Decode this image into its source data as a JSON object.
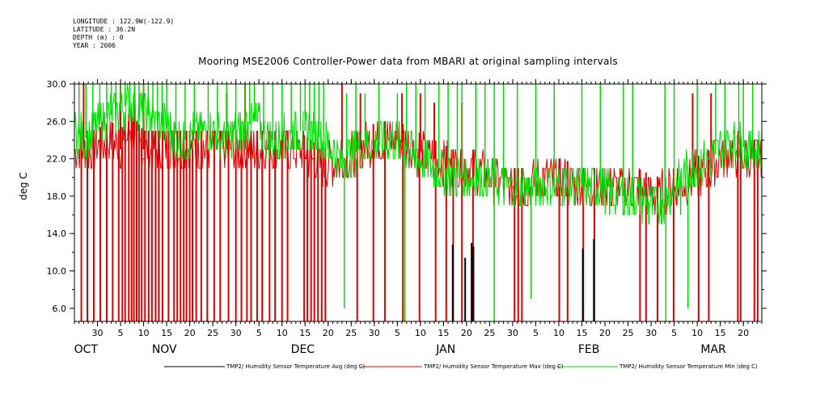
{
  "header": {
    "longitude": "LONGITUDE : 122.9W(-122.9)",
    "latitude": "LATITUDE : 36.2N",
    "depth": "DEPTH (m) : 0",
    "year": "YEAR : 2006"
  },
  "chart_data": {
    "type": "line",
    "title": "Mooring MSE2006 Controller-Power data from MBARI at original sampling intervals",
    "ylabel": "deg C",
    "xlabel": "",
    "ylim": [
      4.6,
      30.0
    ],
    "y_ticks": [
      "30.0",
      "26.0",
      "22.0",
      "18.0",
      "14.0",
      "10.0",
      "6.0"
    ],
    "y_tick_values": [
      30,
      26,
      22,
      18,
      14,
      10,
      6
    ],
    "x_day_range": [
      0,
      149
    ],
    "x_day_ticks": [
      {
        "day": 5,
        "label": "30"
      },
      {
        "day": 10,
        "label": "5"
      },
      {
        "day": 15,
        "label": "10"
      },
      {
        "day": 20,
        "label": "15"
      },
      {
        "day": 25,
        "label": "20"
      },
      {
        "day": 30,
        "label": "25"
      },
      {
        "day": 35,
        "label": "30"
      },
      {
        "day": 40,
        "label": "5"
      },
      {
        "day": 45,
        "label": "10"
      },
      {
        "day": 50,
        "label": "15"
      },
      {
        "day": 55,
        "label": "20"
      },
      {
        "day": 60,
        "label": "25"
      },
      {
        "day": 65,
        "label": "30"
      },
      {
        "day": 70,
        "label": "5"
      },
      {
        "day": 75,
        "label": "10"
      },
      {
        "day": 80,
        "label": "15"
      },
      {
        "day": 85,
        "label": "20"
      },
      {
        "day": 90,
        "label": "25"
      },
      {
        "day": 95,
        "label": "30"
      },
      {
        "day": 100,
        "label": "5"
      },
      {
        "day": 105,
        "label": "10"
      },
      {
        "day": 110,
        "label": "15"
      },
      {
        "day": 115,
        "label": "20"
      },
      {
        "day": 120,
        "label": "25"
      },
      {
        "day": 125,
        "label": "30"
      },
      {
        "day": 130,
        "label": "5"
      },
      {
        "day": 135,
        "label": "10"
      },
      {
        "day": 140,
        "label": "15"
      },
      {
        "day": 145,
        "label": "20"
      }
    ],
    "x_months": [
      {
        "day": 2.5,
        "label": "OCT"
      },
      {
        "day": 19.5,
        "label": "NOV"
      },
      {
        "day": 49.5,
        "label": "DEC"
      },
      {
        "day": 80.5,
        "label": "JAN"
      },
      {
        "day": 111.5,
        "label": "FEB"
      },
      {
        "day": 138.5,
        "label": "MAR"
      }
    ],
    "series": [
      {
        "name": "TMP2/ Humidity Sensor Temperature Avg (deg C)",
        "color": "#000000",
        "points": [
          [
            82,
            12.8
          ],
          [
            82.2,
            4.6
          ],
          [
            84.7,
            11.4
          ],
          [
            84.9,
            4.6
          ],
          [
            86.1,
            13.0
          ],
          [
            86.3,
            4.6
          ],
          [
            86.5,
            12.6
          ],
          [
            86.7,
            4.6
          ],
          [
            110.2,
            12.4
          ],
          [
            110.4,
            4.6
          ],
          [
            112.6,
            13.4
          ],
          [
            112.8,
            4.6
          ]
        ]
      },
      {
        "name": "TMP2/ Humidity Sensor Temperature Max (deg C)",
        "color": "#dd0000",
        "base": [
          [
            0,
            23
          ],
          [
            4,
            23
          ],
          [
            8,
            24
          ],
          [
            10,
            23
          ],
          [
            12,
            25
          ],
          [
            15,
            23
          ],
          [
            18,
            23
          ],
          [
            22,
            23
          ],
          [
            26,
            23
          ],
          [
            30,
            23
          ],
          [
            34,
            23
          ],
          [
            38,
            23
          ],
          [
            42,
            23
          ],
          [
            46,
            23
          ],
          [
            50,
            22.5
          ],
          [
            54,
            21
          ],
          [
            58,
            22
          ],
          [
            62,
            23
          ],
          [
            66,
            24
          ],
          [
            70,
            24
          ],
          [
            74,
            23
          ],
          [
            78,
            22
          ],
          [
            82,
            21
          ],
          [
            86,
            21
          ],
          [
            90,
            20
          ],
          [
            94,
            19
          ],
          [
            98,
            19
          ],
          [
            102,
            20
          ],
          [
            106,
            20
          ],
          [
            110,
            19
          ],
          [
            114,
            19
          ],
          [
            118,
            19
          ],
          [
            122,
            19
          ],
          [
            126,
            18
          ],
          [
            130,
            19
          ],
          [
            134,
            20
          ],
          [
            138,
            21
          ],
          [
            142,
            23
          ],
          [
            146,
            22
          ],
          [
            149,
            22
          ]
        ],
        "drops": [
          [
            1.5,
            4.6
          ],
          [
            2.8,
            4.6
          ],
          [
            4.2,
            4.6
          ],
          [
            5.6,
            4.6
          ],
          [
            7.0,
            4.6
          ],
          [
            8.3,
            4.6
          ],
          [
            9.6,
            4.6
          ],
          [
            10.4,
            4.6
          ],
          [
            11.0,
            4.6
          ],
          [
            11.8,
            4.6
          ],
          [
            12.4,
            4.6
          ],
          [
            12.9,
            4.6
          ],
          [
            13.5,
            4.6
          ],
          [
            14.0,
            4.6
          ],
          [
            14.6,
            4.6
          ],
          [
            15.3,
            4.6
          ],
          [
            16.1,
            4.6
          ],
          [
            16.8,
            4.6
          ],
          [
            17.6,
            4.6
          ],
          [
            18.3,
            4.6
          ],
          [
            19.1,
            4.6
          ],
          [
            20.4,
            4.6
          ],
          [
            21.6,
            4.6
          ],
          [
            22.3,
            4.6
          ],
          [
            23.0,
            4.6
          ],
          [
            23.7,
            4.6
          ],
          [
            24.3,
            4.6
          ],
          [
            25.0,
            4.6
          ],
          [
            25.6,
            4.6
          ],
          [
            26.4,
            4.6
          ],
          [
            27.5,
            4.6
          ],
          [
            28.8,
            4.6
          ],
          [
            30.3,
            4.6
          ],
          [
            31.6,
            4.6
          ],
          [
            33.4,
            4.6
          ],
          [
            35.0,
            4.6
          ],
          [
            36.2,
            4.6
          ],
          [
            37.4,
            4.6
          ],
          [
            38.3,
            4.6
          ],
          [
            39.6,
            4.6
          ],
          [
            40.7,
            4.6
          ],
          [
            42.3,
            4.6
          ],
          [
            43.5,
            4.6
          ],
          [
            45.0,
            4.6
          ],
          [
            46.2,
            4.6
          ],
          [
            49.8,
            4.6
          ],
          [
            50.5,
            4.6
          ],
          [
            51.3,
            4.6
          ],
          [
            52.0,
            4.6
          ],
          [
            52.8,
            4.6
          ],
          [
            53.6,
            4.6
          ],
          [
            54.4,
            4.6
          ],
          [
            61.3,
            4.6
          ],
          [
            64.8,
            4.6
          ],
          [
            67.3,
            4.6
          ],
          [
            71.2,
            4.6
          ],
          [
            74.8,
            4.6
          ],
          [
            78.3,
            4.6
          ],
          [
            80.6,
            4.6
          ],
          [
            82.1,
            4.6
          ],
          [
            84.0,
            4.6
          ],
          [
            86.4,
            4.6
          ],
          [
            95.4,
            4.6
          ],
          [
            96.2,
            4.6
          ],
          [
            97.0,
            4.6
          ],
          [
            105.1,
            4.6
          ],
          [
            106.9,
            4.6
          ],
          [
            110.3,
            4.6
          ],
          [
            112.7,
            4.6
          ],
          [
            122.6,
            4.6
          ],
          [
            123.9,
            4.6
          ],
          [
            126.4,
            4.6
          ],
          [
            129.9,
            4.6
          ],
          [
            135.3,
            4.6
          ],
          [
            137.5,
            4.6
          ],
          [
            143.8,
            4.6
          ],
          [
            144.4,
            4.6
          ],
          [
            147.4,
            4.6
          ],
          [
            148.1,
            4.6
          ]
        ],
        "spikes": [
          [
            2,
            30
          ],
          [
            10,
            30
          ],
          [
            13,
            29
          ],
          [
            15,
            30
          ],
          [
            33,
            29
          ],
          [
            37,
            30
          ],
          [
            58,
            30
          ],
          [
            62,
            29
          ],
          [
            71,
            29
          ],
          [
            75,
            29
          ],
          [
            78,
            28
          ],
          [
            84,
            28
          ],
          [
            134,
            29
          ],
          [
            138,
            29
          ]
        ]
      },
      {
        "name": "TMP2/ Humidity Sensor Temperature Min (deg C)",
        "color": "#00dd00",
        "base": [
          [
            0,
            25
          ],
          [
            3,
            24
          ],
          [
            6,
            26
          ],
          [
            9,
            27
          ],
          [
            12,
            28
          ],
          [
            15,
            27
          ],
          [
            18,
            26
          ],
          [
            21,
            25
          ],
          [
            24,
            24
          ],
          [
            27,
            25
          ],
          [
            30,
            25
          ],
          [
            33,
            24
          ],
          [
            36,
            25
          ],
          [
            39,
            26
          ],
          [
            42,
            24
          ],
          [
            45,
            24
          ],
          [
            48,
            25
          ],
          [
            51,
            25
          ],
          [
            54,
            24
          ],
          [
            58,
            22
          ],
          [
            62,
            23
          ],
          [
            66,
            24
          ],
          [
            70,
            24
          ],
          [
            74,
            22
          ],
          [
            78,
            21
          ],
          [
            82,
            20
          ],
          [
            86,
            20
          ],
          [
            90,
            20
          ],
          [
            94,
            19
          ],
          [
            98,
            19
          ],
          [
            102,
            19
          ],
          [
            106,
            19
          ],
          [
            110,
            19
          ],
          [
            114,
            19
          ],
          [
            118,
            18
          ],
          [
            122,
            18
          ],
          [
            126,
            17
          ],
          [
            130,
            19
          ],
          [
            134,
            21
          ],
          [
            138,
            22
          ],
          [
            142,
            24
          ],
          [
            146,
            23
          ],
          [
            149,
            23
          ]
        ],
        "spikes": [
          [
            1,
            30
          ],
          [
            2.5,
            30
          ],
          [
            4,
            30
          ],
          [
            5.5,
            30
          ],
          [
            7,
            30
          ],
          [
            8,
            30
          ],
          [
            9,
            30
          ],
          [
            10,
            30
          ],
          [
            11,
            30
          ],
          [
            12,
            30
          ],
          [
            13,
            30
          ],
          [
            14,
            30
          ],
          [
            15,
            30
          ],
          [
            16,
            30
          ],
          [
            17,
            30
          ],
          [
            18,
            30
          ],
          [
            19,
            30
          ],
          [
            20,
            30
          ],
          [
            22,
            30
          ],
          [
            24,
            30
          ],
          [
            26,
            30
          ],
          [
            29,
            30
          ],
          [
            31,
            30
          ],
          [
            33,
            30
          ],
          [
            35,
            30
          ],
          [
            37,
            30
          ],
          [
            38,
            30
          ],
          [
            39,
            30
          ],
          [
            41,
            30
          ],
          [
            43,
            30
          ],
          [
            45,
            30
          ],
          [
            47,
            30
          ],
          [
            49,
            30
          ],
          [
            50,
            30
          ],
          [
            51,
            30
          ],
          [
            52,
            30
          ],
          [
            53,
            30
          ],
          [
            54,
            30
          ],
          [
            59,
            29
          ],
          [
            61,
            30
          ],
          [
            63,
            29
          ],
          [
            66,
            30
          ],
          [
            70,
            29
          ],
          [
            72,
            30
          ],
          [
            74,
            30
          ],
          [
            76,
            30
          ],
          [
            79,
            30
          ],
          [
            81,
            30
          ],
          [
            83,
            30
          ],
          [
            84,
            30
          ],
          [
            87,
            30
          ],
          [
            89,
            30
          ],
          [
            91,
            30
          ],
          [
            93,
            30
          ],
          [
            96,
            30
          ],
          [
            100,
            30
          ],
          [
            104,
            30
          ],
          [
            110,
            30
          ],
          [
            114,
            30
          ],
          [
            119,
            30
          ],
          [
            121,
            30
          ],
          [
            128,
            30
          ],
          [
            130,
            30
          ],
          [
            135,
            30
          ],
          [
            139,
            30
          ],
          [
            141,
            30
          ],
          [
            144,
            30
          ],
          [
            145,
            30
          ],
          [
            147,
            30
          ]
        ],
        "dips": [
          [
            58.5,
            6
          ],
          [
            71.6,
            4.6
          ],
          [
            91.0,
            4.6
          ],
          [
            99.0,
            7
          ],
          [
            116.0,
            16
          ],
          [
            119.2,
            16
          ],
          [
            124.5,
            15
          ],
          [
            127.3,
            15
          ],
          [
            128.2,
            4.6
          ],
          [
            131.4,
            16
          ],
          [
            133.0,
            6
          ]
        ]
      }
    ]
  }
}
